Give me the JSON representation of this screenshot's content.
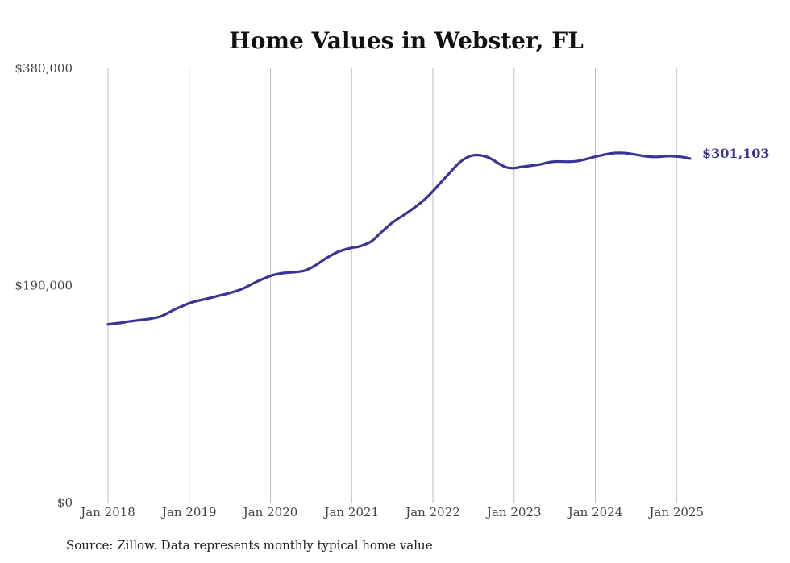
{
  "colors": {
    "series": "#3a3497",
    "grid": "#bdbdbd",
    "text": "#444444"
  },
  "source_note": "Source: Zillow. Data represents monthly typical home value",
  "chart_data": {
    "type": "line",
    "title": "Home Values in Webster, FL",
    "xlabel": "",
    "ylabel": "",
    "ylim": [
      0,
      380000
    ],
    "y_ticks": [
      {
        "value": 0,
        "label": "$0"
      },
      {
        "value": 190000,
        "label": "$190,000"
      },
      {
        "value": 380000,
        "label": "$380,000"
      }
    ],
    "x_range": [
      "2018-01",
      "2025-05"
    ],
    "x_ticks": [
      {
        "date": "2018-01",
        "label": "Jan 2018"
      },
      {
        "date": "2019-01",
        "label": "Jan 2019"
      },
      {
        "date": "2020-01",
        "label": "Jan 2020"
      },
      {
        "date": "2021-01",
        "label": "Jan 2021"
      },
      {
        "date": "2022-01",
        "label": "Jan 2022"
      },
      {
        "date": "2023-01",
        "label": "Jan 2023"
      },
      {
        "date": "2024-01",
        "label": "Jan 2024"
      },
      {
        "date": "2025-01",
        "label": "Jan 2025"
      }
    ],
    "grid": {
      "vertical": true,
      "horizontal": false
    },
    "legend": "none",
    "end_label": "$301,103",
    "series": [
      {
        "values": [
          [
            "2018-01",
            156000
          ],
          [
            "2018-02",
            156800
          ],
          [
            "2018-03",
            157400
          ],
          [
            "2018-04",
            158500
          ],
          [
            "2018-05",
            159200
          ],
          [
            "2018-06",
            160000
          ],
          [
            "2018-07",
            160700
          ],
          [
            "2018-08",
            161800
          ],
          [
            "2018-09",
            163500
          ],
          [
            "2018-10",
            166500
          ],
          [
            "2018-11",
            169500
          ],
          [
            "2018-12",
            172000
          ],
          [
            "2019-01",
            174500
          ],
          [
            "2019-02",
            176300
          ],
          [
            "2019-03",
            177600
          ],
          [
            "2019-04",
            179000
          ],
          [
            "2019-05",
            180500
          ],
          [
            "2019-06",
            182000
          ],
          [
            "2019-07",
            183500
          ],
          [
            "2019-08",
            185300
          ],
          [
            "2019-09",
            187500
          ],
          [
            "2019-10",
            190500
          ],
          [
            "2019-11",
            193500
          ],
          [
            "2019-12",
            196000
          ],
          [
            "2020-01",
            198500
          ],
          [
            "2020-02",
            200000
          ],
          [
            "2020-03",
            201000
          ],
          [
            "2020-04",
            201500
          ],
          [
            "2020-05",
            202000
          ],
          [
            "2020-06",
            203000
          ],
          [
            "2020-07",
            205500
          ],
          [
            "2020-08",
            209000
          ],
          [
            "2020-09",
            213000
          ],
          [
            "2020-10",
            216500
          ],
          [
            "2020-11",
            219500
          ],
          [
            "2020-12",
            221500
          ],
          [
            "2021-01",
            223000
          ],
          [
            "2021-02",
            224000
          ],
          [
            "2021-03",
            226000
          ],
          [
            "2021-04",
            229000
          ],
          [
            "2021-05",
            234500
          ],
          [
            "2021-06",
            240000
          ],
          [
            "2021-07",
            245000
          ],
          [
            "2021-08",
            249000
          ],
          [
            "2021-09",
            252800
          ],
          [
            "2021-10",
            257000
          ],
          [
            "2021-11",
            261500
          ],
          [
            "2021-12",
            266500
          ],
          [
            "2022-01",
            272500
          ],
          [
            "2022-02",
            279000
          ],
          [
            "2022-03",
            285500
          ],
          [
            "2022-04",
            292000
          ],
          [
            "2022-05",
            298000
          ],
          [
            "2022-06",
            302000
          ],
          [
            "2022-07",
            304000
          ],
          [
            "2022-08",
            304000
          ],
          [
            "2022-09",
            302500
          ],
          [
            "2022-10",
            299500
          ],
          [
            "2022-11",
            295800
          ],
          [
            "2022-12",
            293200
          ],
          [
            "2023-01",
            292800
          ],
          [
            "2023-02",
            293800
          ],
          [
            "2023-03",
            294500
          ],
          [
            "2023-04",
            295300
          ],
          [
            "2023-05",
            296200
          ],
          [
            "2023-06",
            297700
          ],
          [
            "2023-07",
            298500
          ],
          [
            "2023-08",
            298500
          ],
          [
            "2023-09",
            298400
          ],
          [
            "2023-10",
            298700
          ],
          [
            "2023-11",
            299700
          ],
          [
            "2023-12",
            301200
          ],
          [
            "2024-01",
            302800
          ],
          [
            "2024-02",
            304100
          ],
          [
            "2024-03",
            305300
          ],
          [
            "2024-04",
            306000
          ],
          [
            "2024-05",
            306000
          ],
          [
            "2024-06",
            305500
          ],
          [
            "2024-07",
            304500
          ],
          [
            "2024-08",
            303500
          ],
          [
            "2024-09",
            302800
          ],
          [
            "2024-10",
            302600
          ],
          [
            "2024-11",
            303000
          ],
          [
            "2024-12",
            303300
          ],
          [
            "2025-01",
            303000
          ],
          [
            "2025-02",
            302300
          ],
          [
            "2025-03",
            301103
          ]
        ]
      }
    ]
  }
}
